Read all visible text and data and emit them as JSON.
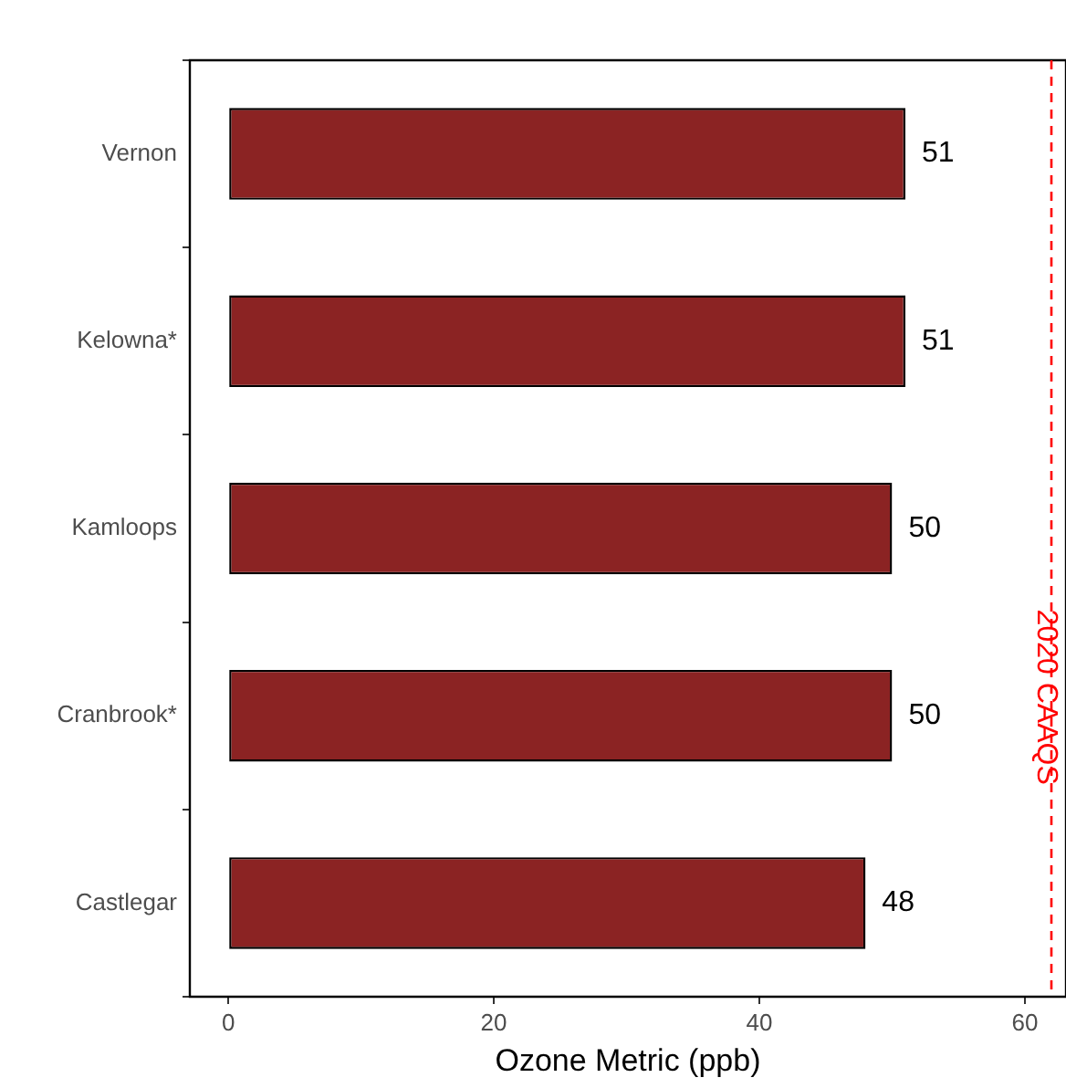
{
  "chart_data": {
    "type": "bar",
    "orientation": "horizontal",
    "xlabel": "Ozone Metric (ppb)",
    "categories": [
      "Vernon",
      "Kelowna*",
      "Kamloops",
      "Cranbrook*",
      "Castlegar"
    ],
    "values": [
      51,
      51,
      50,
      50,
      48
    ],
    "color": "#8b2323",
    "data_labels": true,
    "xlim": [
      -2.9,
      63.1
    ],
    "xticks": [
      0,
      20,
      40,
      60
    ],
    "ref_lines": [
      {
        "axis": "x",
        "value": 62,
        "label": "2020 CAAQS",
        "color": "#ff0000",
        "line_style": "dashed"
      }
    ]
  }
}
